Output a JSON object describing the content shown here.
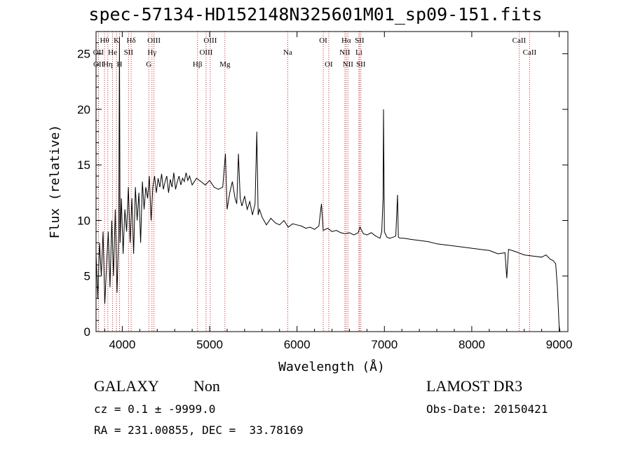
{
  "title": "spec-57134-HD152148N325601M01_sp09-151.fits",
  "info": {
    "class": "GALAXY",
    "subclass": "Non",
    "survey": "LAMOST DR3",
    "cz_line": "cz = 0.1 ± -9999.0",
    "obs_date": "Obs-Date: 20150421",
    "coords": "RA = 231.00855, DEC =  33.78169"
  },
  "chart_data": {
    "type": "line",
    "title": "spec-57134-HD152148N325601M01_sp09-151.fits",
    "xlabel": "Wavelength (Å)",
    "ylabel": "Flux (relative)",
    "xlim": [
      3700,
      9100
    ],
    "ylim": [
      0,
      27
    ],
    "x_ticks": [
      4000,
      5000,
      6000,
      7000,
      8000,
      9000
    ],
    "y_ticks": [
      0,
      5,
      10,
      15,
      20,
      25
    ],
    "line_color": "#000000",
    "marker_color": "#cc2222",
    "spectrum": {
      "name": "flux",
      "x": [
        3700,
        3720,
        3740,
        3760,
        3780,
        3800,
        3820,
        3840,
        3860,
        3880,
        3900,
        3920,
        3940,
        3960,
        3968,
        3975,
        3990,
        4010,
        4030,
        4050,
        4070,
        4090,
        4110,
        4130,
        4150,
        4170,
        4190,
        4210,
        4230,
        4250,
        4270,
        4290,
        4310,
        4330,
        4350,
        4370,
        4390,
        4410,
        4430,
        4450,
        4470,
        4490,
        4510,
        4530,
        4550,
        4570,
        4590,
        4610,
        4630,
        4650,
        4670,
        4690,
        4710,
        4730,
        4750,
        4770,
        4800,
        4850,
        4900,
        4950,
        5000,
        5050,
        5100,
        5150,
        5180,
        5200,
        5230,
        5260,
        5290,
        5310,
        5330,
        5350,
        5370,
        5400,
        5430,
        5460,
        5490,
        5520,
        5540,
        5555,
        5570,
        5600,
        5650,
        5700,
        5750,
        5800,
        5850,
        5900,
        5950,
        6000,
        6050,
        6100,
        6150,
        6200,
        6250,
        6280,
        6300,
        6350,
        6400,
        6450,
        6500,
        6550,
        6600,
        6650,
        6700,
        6720,
        6760,
        6800,
        6850,
        6900,
        6950,
        6970,
        6985,
        6990,
        7000,
        7010,
        7030,
        7060,
        7100,
        7130,
        7150,
        7160,
        7180,
        7220,
        7300,
        7400,
        7500,
        7600,
        7700,
        7800,
        7900,
        8000,
        8100,
        8200,
        8300,
        8380,
        8400,
        8420,
        8500,
        8600,
        8700,
        8800,
        8850,
        8900,
        8930,
        8960,
        8980,
        9000,
        9010
      ],
      "y": [
        7,
        3,
        8,
        5,
        9,
        2.5,
        6,
        9,
        4,
        10,
        5,
        11,
        3.5,
        9,
        26.5,
        8,
        12,
        7,
        11,
        9,
        13,
        8,
        12,
        7,
        13,
        10,
        12.5,
        8,
        13.5,
        11,
        13,
        12,
        14,
        10,
        13,
        14,
        12.5,
        13.8,
        13,
        14.2,
        12.8,
        13.5,
        14,
        12.5,
        13.7,
        13,
        14.3,
        12.8,
        13.5,
        14,
        13.2,
        13.8,
        13.5,
        14.3,
        13.6,
        14,
        13.2,
        13.8,
        13.5,
        13.2,
        13.6,
        13,
        12.8,
        13,
        16,
        11,
        12.5,
        13.5,
        12,
        11.5,
        16,
        12,
        11.3,
        12.2,
        11,
        11.7,
        10.5,
        11.5,
        18,
        10.5,
        11,
        10.3,
        9.6,
        10.2,
        9.8,
        9.6,
        10,
        9.4,
        9.7,
        9.6,
        9.5,
        9.3,
        9.4,
        9.2,
        9.5,
        11.5,
        9.1,
        9.3,
        9.0,
        9.1,
        8.9,
        8.8,
        8.9,
        8.7,
        8.9,
        9.4,
        8.8,
        8.7,
        8.9,
        8.6,
        8.4,
        9,
        12,
        20,
        9,
        8.8,
        8.5,
        8.4,
        8.5,
        8.6,
        12.3,
        8.5,
        8.4,
        8.4,
        8.3,
        8.2,
        8.1,
        7.9,
        7.8,
        7.7,
        7.6,
        7.5,
        7.4,
        7.3,
        7.0,
        7.1,
        4.8,
        7.4,
        7.2,
        6.9,
        6.8,
        6.7,
        6.9,
        6.5,
        6.4,
        6.1,
        4,
        0.5,
        0
      ]
    },
    "line_markers": [
      {
        "label": "OII",
        "wavelength": 3727,
        "row": 1
      },
      {
        "label": "OII",
        "wavelength": 3729,
        "row": 2
      },
      {
        "label": "Hθ",
        "wavelength": 3797,
        "row": 0
      },
      {
        "label": "Hη",
        "wavelength": 3835,
        "row": 2
      },
      {
        "label": "He",
        "wavelength": 3889,
        "row": 1
      },
      {
        "label": "K",
        "wavelength": 3934,
        "row": 0
      },
      {
        "label": "H",
        "wavelength": 3969,
        "row": 2
      },
      {
        "label": "Hδ",
        "wavelength": 4102,
        "row": 0
      },
      {
        "label": "SII",
        "wavelength": 4072,
        "row": 1
      },
      {
        "label": "G",
        "wavelength": 4304,
        "row": 2
      },
      {
        "label": "Hγ",
        "wavelength": 4340,
        "row": 1
      },
      {
        "label": "OIII",
        "wavelength": 4363,
        "row": 0
      },
      {
        "label": "Hβ",
        "wavelength": 4861,
        "row": 2
      },
      {
        "label": "OIII",
        "wavelength": 4959,
        "row": 1
      },
      {
        "label": "OIII",
        "wavelength": 5007,
        "row": 0
      },
      {
        "label": "Mg",
        "wavelength": 5175,
        "row": 2
      },
      {
        "label": "Na",
        "wavelength": 5894,
        "row": 1
      },
      {
        "label": "OI",
        "wavelength": 6300,
        "row": 0
      },
      {
        "label": "OI",
        "wavelength": 6363,
        "row": 2
      },
      {
        "label": "NII",
        "wavelength": 6548,
        "row": 1
      },
      {
        "label": "Hα",
        "wavelength": 6563,
        "row": 0
      },
      {
        "label": "NII",
        "wavelength": 6583,
        "row": 2
      },
      {
        "label": "SII",
        "wavelength": 6716,
        "row": 0
      },
      {
        "label": "Li",
        "wavelength": 6708,
        "row": 1
      },
      {
        "label": "SII",
        "wavelength": 6731,
        "row": 2
      },
      {
        "label": "CaII",
        "wavelength": 8542,
        "row": 0
      },
      {
        "label": "CaII",
        "wavelength": 8662,
        "row": 1
      }
    ]
  }
}
